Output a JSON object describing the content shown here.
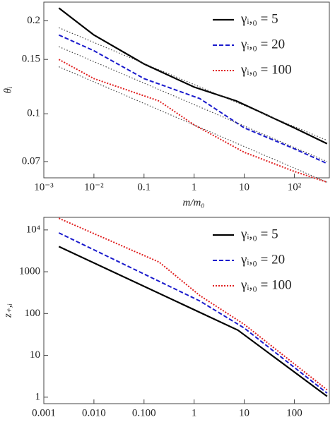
{
  "chart_data": [
    {
      "type": "line",
      "xlabel": "m/m₀",
      "ylabel": "θᵢ",
      "log_x": true,
      "log_y": true,
      "legend": "upper right",
      "xlim": [
        0.001,
        500
      ],
      "ylim": [
        0.062,
        0.23
      ],
      "xticks": [
        {
          "value": 0.001,
          "label": "10⁻³"
        },
        {
          "value": 0.01,
          "label": "10⁻²"
        },
        0.1,
        1,
        10,
        {
          "value": 100,
          "label": "10²"
        }
      ],
      "yticks": [
        0.07,
        0.1,
        0.15,
        0.2
      ],
      "series": [
        {
          "name": "γᵢ,₀ = 5",
          "color": "#000000",
          "style": "solid",
          "x": [
            0.002,
            0.01,
            0.1,
            1,
            7,
            100,
            450
          ],
          "values": [
            0.22,
            0.18,
            0.145,
            0.122,
            0.11,
            0.09,
            0.08
          ]
        },
        {
          "name": "γᵢ,₀ = 20",
          "color": "#1a1acc",
          "style": "dashed",
          "x": [
            0.002,
            0.01,
            0.1,
            1.3,
            10,
            100,
            450
          ],
          "values": [
            0.18,
            0.16,
            0.13,
            0.112,
            0.09,
            0.077,
            0.069
          ]
        },
        {
          "name": "γᵢ,₀ = 100",
          "color": "#e02020",
          "style": "dotted",
          "x": [
            0.002,
            0.01,
            0.2,
            1,
            10,
            100,
            450
          ],
          "values": [
            0.15,
            0.13,
            0.11,
            0.092,
            0.075,
            0.065,
            0.06
          ]
        },
        {
          "color": "#444444",
          "style": "fit",
          "x": [
            0.002,
            450
          ],
          "values": [
            0.19,
            0.082
          ]
        },
        {
          "color": "#444444",
          "style": "fit",
          "x": [
            0.002,
            450
          ],
          "values": [
            0.165,
            0.07
          ]
        },
        {
          "color": "#444444",
          "style": "fit",
          "x": [
            0.002,
            450
          ],
          "values": [
            0.142,
            0.06
          ]
        }
      ]
    },
    {
      "type": "line",
      "xlabel": "m/m₀",
      "ylabel": "z₊,ᵢ",
      "log_x": true,
      "log_y": true,
      "legend": "upper right",
      "xlim": [
        0.001,
        500
      ],
      "ylim": [
        0.7,
        20000
      ],
      "xticks": [
        0.001,
        {
          "value": 0.01,
          "label": "0.010"
        },
        {
          "value": 0.1,
          "label": "0.100"
        },
        1,
        10,
        100
      ],
      "yticks": [
        1,
        10,
        100,
        1000,
        {
          "value": 10000,
          "label": "10⁴"
        }
      ],
      "series": [
        {
          "name": "γᵢ,₀ = 5",
          "color": "#000000",
          "style": "solid",
          "x": [
            0.002,
            7.5,
            450
          ],
          "values": [
            4000,
            40,
            1.05
          ]
        },
        {
          "name": "γᵢ,₀ = 20",
          "color": "#1a1acc",
          "style": "dashed",
          "x": [
            0.002,
            1.3,
            10,
            450
          ],
          "values": [
            8500,
            200,
            45,
            1.25
          ]
        },
        {
          "name": "γᵢ,₀ = 100",
          "color": "#e02020",
          "style": "dotted",
          "x": [
            0.002,
            0.2,
            1.3,
            10,
            450
          ],
          "values": [
            19000,
            1700,
            270,
            55,
            1.5
          ]
        }
      ]
    }
  ]
}
